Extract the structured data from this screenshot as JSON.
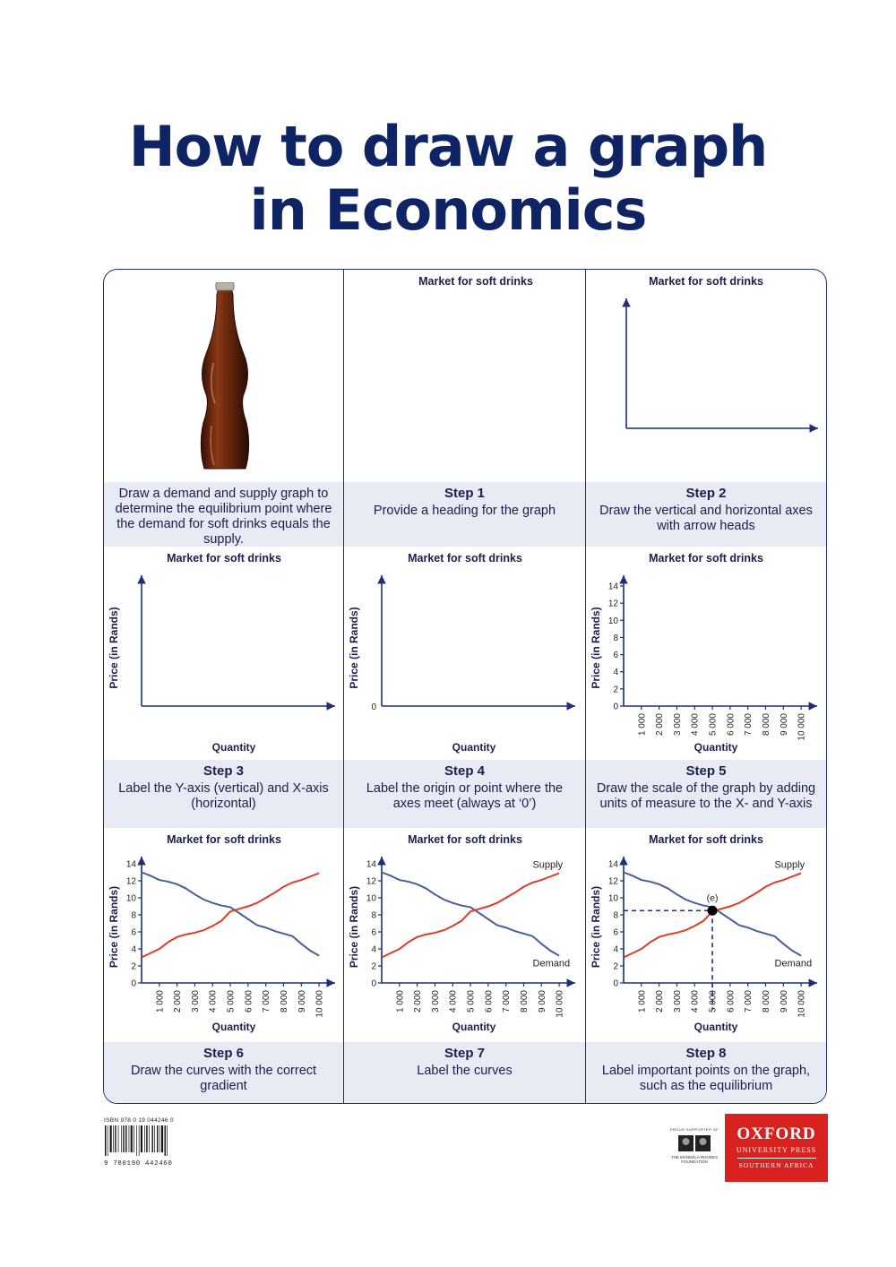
{
  "title": {
    "line1": "How to draw a graph",
    "line2": "in Economics"
  },
  "graph_heading": "Market for soft drinks",
  "y_label": "Price (in Rands)",
  "x_label": "Quantity",
  "origin_label": "0",
  "curve_labels": {
    "supply": "Supply",
    "demand": "Demand",
    "equilibrium": "(e)"
  },
  "panels": [
    {
      "step": "",
      "text": "Draw a demand and supply graph to determine the equilibrium point where the demand for soft drinks equals the supply."
    },
    {
      "step": "Step 1",
      "text": "Provide a heading for the graph"
    },
    {
      "step": "Step 2",
      "text": "Draw the vertical and horizontal axes with arrow heads"
    },
    {
      "step": "Step 3",
      "text": "Label the Y-axis (vertical) and X-axis (horizontal)"
    },
    {
      "step": "Step 4",
      "text": "Label the origin or point where the axes meet (always at ‘0’)"
    },
    {
      "step": "Step 5",
      "text": "Draw the scale of the graph by adding units of measure to the X- and Y-axis"
    },
    {
      "step": "Step 6",
      "text": "Draw the curves with the correct gradient"
    },
    {
      "step": "Step 7",
      "text": "Label the curves"
    },
    {
      "step": "Step 8",
      "text": "Label important points on the graph, such as the equilibrium"
    }
  ],
  "chart_data": {
    "type": "line",
    "title": "Market for soft drinks",
    "xlabel": "Quantity",
    "ylabel": "Price (in Rands)",
    "x_ticks": [
      "1 000",
      "2 000",
      "3 000",
      "4 000",
      "5 000",
      "6 000",
      "7 000",
      "8 000",
      "9 000",
      "10 000"
    ],
    "y_ticks": [
      "0",
      "2",
      "4",
      "6",
      "8",
      "10",
      "12",
      "14"
    ],
    "xlim": [
      0,
      10500
    ],
    "ylim": [
      0,
      14
    ],
    "series": [
      {
        "name": "Demand",
        "color": "#4a5f9a",
        "x": [
          0,
          500,
          1000,
          1500,
          2000,
          2500,
          3000,
          3500,
          4000,
          4500,
          5000,
          5500,
          6000,
          6500,
          7000,
          7500,
          8000,
          8500,
          9000,
          9500,
          10000
        ],
        "values": [
          13.0,
          12.6,
          12.1,
          11.9,
          11.6,
          11.1,
          10.4,
          9.8,
          9.4,
          9.1,
          8.9,
          8.2,
          7.5,
          6.8,
          6.5,
          6.1,
          5.8,
          5.5,
          4.6,
          3.8,
          3.2
        ]
      },
      {
        "name": "Supply",
        "color": "#e03b24",
        "x": [
          0,
          500,
          1000,
          1500,
          2000,
          2500,
          3000,
          3500,
          4000,
          4500,
          5000,
          5500,
          6000,
          6500,
          7000,
          7500,
          8000,
          8500,
          9000,
          9500,
          10000
        ],
        "values": [
          3.0,
          3.5,
          4.0,
          4.8,
          5.4,
          5.7,
          5.9,
          6.2,
          6.7,
          7.3,
          8.4,
          8.7,
          9.0,
          9.4,
          10.0,
          10.6,
          11.3,
          11.8,
          12.1,
          12.5,
          12.9
        ]
      }
    ],
    "equilibrium": {
      "label": "(e)",
      "x": 5000,
      "y": 8.5
    }
  },
  "footer": {
    "isbn": "ISBN  978 0 19 044246 0",
    "barcode_number": "9 780190 442460",
    "mandela_top": "PROUD SUPPORTER OF",
    "mandela_bottom": "THE MANDELA RHODES FOUNDATION",
    "oxford_name": "OXFORD",
    "oxford_press": "UNIVERSITY PRESS",
    "oxford_region": "SOUTHERN AFRICA"
  },
  "colors": {
    "title": "#0e2464",
    "frame": "#1c2f78",
    "caption_bg": "#e8ebf3",
    "oxford_red": "#d7221f"
  }
}
